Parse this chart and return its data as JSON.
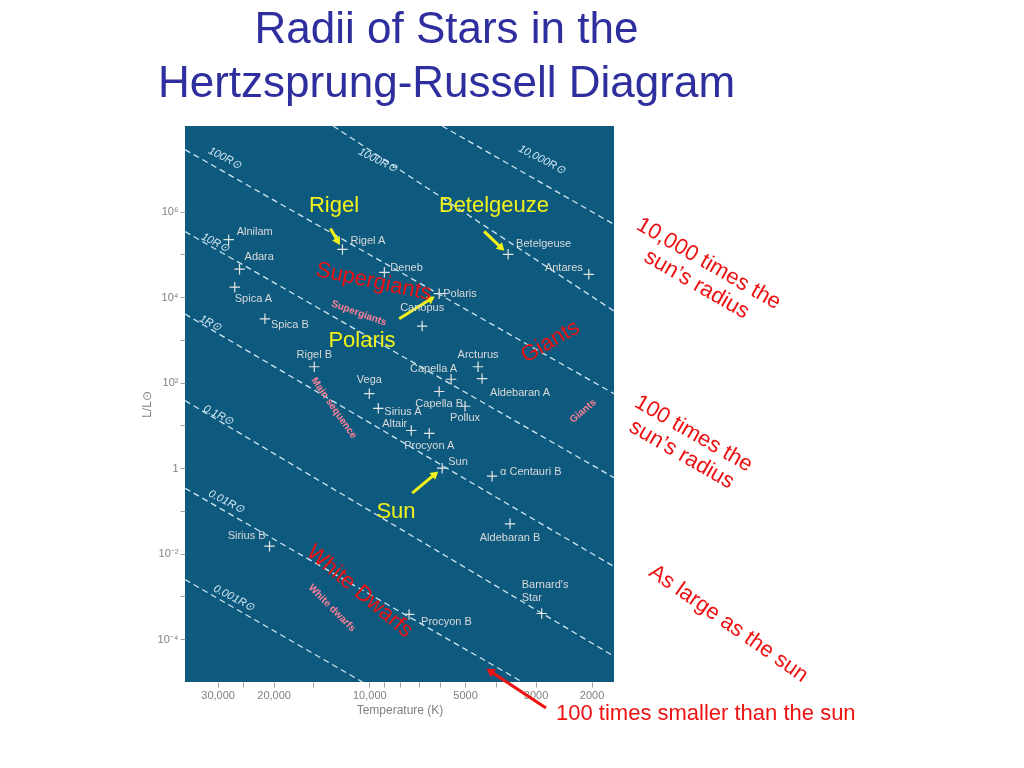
{
  "chart_data": {
    "type": "scatter",
    "title": "Radii of Stars in the\nHertzsprung-Russell Diagram",
    "xlabel": "Temperature (K)",
    "ylabel": "L/L⊙",
    "log": "xy",
    "xlim": [
      38000,
      1700
    ],
    "ylim": [
      1e-05,
      100000000
    ],
    "xticks": [
      {
        "value": 30000,
        "label": "30,000"
      },
      {
        "value": 25000,
        "label": null
      },
      {
        "value": 20000,
        "label": "20,000"
      },
      {
        "value": 15000,
        "label": null
      },
      {
        "value": 10000,
        "label": "10,000"
      },
      {
        "value": 9000,
        "label": null
      },
      {
        "value": 8000,
        "label": null
      },
      {
        "value": 7000,
        "label": null
      },
      {
        "value": 6000,
        "label": null
      },
      5000,
      {
        "value": 4000,
        "label": null
      },
      3000,
      2000
    ],
    "yticks": [
      {
        "value": 1000000,
        "label": "10⁶"
      },
      {
        "value": 100000,
        "label": null
      },
      {
        "value": 10000,
        "label": "10⁴"
      },
      {
        "value": 1000,
        "label": null
      },
      {
        "value": 100,
        "label": "10²"
      },
      {
        "value": 10,
        "label": null
      },
      1,
      {
        "value": 0.1,
        "label": null
      },
      {
        "value": 0.01,
        "label": "10⁻²"
      },
      {
        "value": 0.001,
        "label": null
      },
      {
        "value": 0.0001,
        "label": "10⁻⁴"
      }
    ],
    "marker": "cross",
    "line_style": "dashed",
    "series": [
      {
        "color": "#e6e6e6",
        "x": [
          27700,
          25600,
          26500,
          21300,
          14900,
          10000,
          9370,
          7380,
          6480,
          5900,
          4110,
          3610,
          2870,
          7500,
          20600,
          12150,
          8970,
          6030,
          6820,
          5530,
          6030,
          4550,
          4420,
          5000,
          3660,
          2040
        ],
        "values": [
          220000,
          45000,
          17000,
          3100,
          235,
          55,
          25,
          7.6,
          6.5,
          1,
          0.65,
          0.05,
          0.0004,
          0.00038,
          0.015,
          130000,
          38000,
          12000,
          2100,
          120,
          62,
          235,
          124,
          28,
          100000,
          34000
        ]
      },
      {
        "type": "line",
        "name": "10,000R⊙",
        "color": "#cfe6f2",
        "marker": "none",
        "x": [
          5900,
          1700
        ],
        "values": [
          100000000,
          500000
        ]
      },
      {
        "type": "line",
        "name": "1000R⊙",
        "color": "#cfe6f2",
        "marker": "none",
        "x": [
          13000,
          1700
        ],
        "values": [
          100000000,
          4700
        ]
      },
      {
        "type": "line",
        "name": "100R⊙",
        "color": "#cfe6f2",
        "marker": "none",
        "x": [
          38000,
          1700
        ],
        "values": [
          28000000,
          55
        ]
      },
      {
        "type": "line",
        "name": "10R⊙",
        "color": "#cfe6f2",
        "marker": "none",
        "x": [
          38000,
          1700
        ],
        "values": [
          340000,
          0.6
        ]
      },
      {
        "type": "line",
        "name": "1R⊙",
        "color": "#cfe6f2",
        "marker": "none",
        "x": [
          38000,
          1700
        ],
        "values": [
          4000,
          0.005
        ]
      },
      {
        "type": "line",
        "name": "0.1R⊙",
        "color": "#cfe6f2",
        "marker": "none",
        "x": [
          38000,
          1700
        ],
        "values": [
          38,
          4e-05
        ]
      },
      {
        "type": "line",
        "name": "0.01R⊙",
        "color": "#cfe6f2",
        "marker": "none",
        "x": [
          38000,
          3300
        ],
        "values": [
          0.34,
          1e-05
        ]
      },
      {
        "type": "line",
        "name": "0.001R⊙",
        "color": "#cfe6f2",
        "marker": "none",
        "x": [
          38000,
          10500
        ],
        "values": [
          0.0025,
          1e-05
        ]
      }
    ],
    "annotations": [
      {
        "text": "Rigel",
        "x": 12150,
        "y": 130000
      },
      {
        "text": "Betelgeuze",
        "x": 3660,
        "y": 100000
      },
      {
        "text": "Polaris",
        "x": 6030,
        "y": 12000
      },
      {
        "text": "Sun",
        "x": 5900,
        "y": 1
      },
      "Supergiants",
      "Giants",
      "White Dwarfs",
      "Supergiants",
      "Main sequence",
      "Giants",
      "White dwarfs",
      "10,000 times the\nsun’s radius",
      "100 times the\nsun’s radius",
      "As large as the sun",
      "100 times smaller than the sun",
      {
        "text": "Alnilam",
        "x": 27700,
        "y": 220000
      },
      {
        "text": "Adara",
        "x": 25600,
        "y": 45000
      },
      {
        "text": "Spica A",
        "x": 26500,
        "y": 17000
      },
      {
        "text": "Spica B",
        "x": 21300,
        "y": 3100
      },
      {
        "text": "Rigel B",
        "x": 14900,
        "y": 235
      },
      {
        "text": "Vega",
        "x": 10000,
        "y": 55
      },
      {
        "text": "Sirius A",
        "x": 9370,
        "y": 25
      },
      {
        "text": "Altair",
        "x": 7380,
        "y": 7.6
      },
      {
        "text": "Procyon A",
        "x": 6480,
        "y": 6.5
      },
      {
        "text": "Sun",
        "x": 5900,
        "y": 1
      },
      {
        "text": "α Centauri B",
        "x": 4110,
        "y": 0.65
      },
      {
        "text": "Aldebaran B",
        "x": 3610,
        "y": 0.05
      },
      {
        "text": "Barnard's Star",
        "x": 2870,
        "y": 0.0004
      },
      {
        "text": "Procyon B",
        "x": 7500,
        "y": 0.00038
      },
      {
        "text": "Sirius B",
        "x": 20600,
        "y": 0.015
      },
      {
        "text": "Rigel A",
        "x": 12150,
        "y": 130000
      },
      {
        "text": "Deneb",
        "x": 8970,
        "y": 38000
      },
      {
        "text": "Polaris",
        "x": 6030,
        "y": 12000
      },
      {
        "text": "Canopus",
        "x": 6820,
        "y": 2100
      },
      {
        "text": "Capella A",
        "x": 5530,
        "y": 120
      },
      {
        "text": "Capella B",
        "x": 6030,
        "y": 62
      },
      {
        "text": "Arcturus",
        "x": 4550,
        "y": 235
      },
      {
        "text": "Aldebaran A",
        "x": 4420,
        "y": 124
      },
      {
        "text": "Pollux",
        "x": 5000,
        "y": 28
      },
      {
        "text": "Betelgeuse",
        "x": 3660,
        "y": 100000
      },
      {
        "text": "Antares",
        "x": 2040,
        "y": 34000
      }
    ]
  }
}
